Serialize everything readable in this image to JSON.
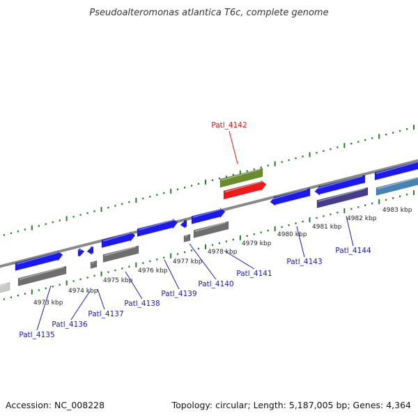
{
  "title": "Pseudoalteromonas atlantica T6c, complete genome",
  "footer": {
    "accession": "Accession: NC_008228",
    "stats": "Topology: circular; Length: 5,187,005 bp; Genes: 4,364"
  },
  "colors": {
    "forward_cds": "#1a1aee",
    "reverse_cds": "#6e6e6e",
    "reverse_cds_light": "#c8c8c8",
    "highlight_cds": "#ee1a1a",
    "rna_gene": "#6b8c2a",
    "purple_cds": "#463c8c",
    "steelblue_cds": "#4682b4",
    "backbone": "#8a8a8a",
    "ruler": "#1f7f1f",
    "label_default": "#1a1aaa",
    "label_highlight": "#dd1111"
  },
  "kbp_labels": [
    "4973 kbp",
    "4974 kbp",
    "4975 kbp",
    "4976 kbp",
    "4977 kbp",
    "4978 kbp",
    "4979 kbp",
    "4980 kbp",
    "4981 kbp",
    "4982 kbp",
    "4983 kbp"
  ],
  "gene_labels": [
    {
      "name": "Patl_4135",
      "highlight": false
    },
    {
      "name": "Patl_4136",
      "highlight": false
    },
    {
      "name": "Patl_4137",
      "highlight": false
    },
    {
      "name": "Patl_4138",
      "highlight": false
    },
    {
      "name": "Patl_4139",
      "highlight": false
    },
    {
      "name": "Patl_4140",
      "highlight": false
    },
    {
      "name": "Patl_4141",
      "highlight": false
    },
    {
      "name": "Patl_4142",
      "highlight": true
    },
    {
      "name": "Patl_4143",
      "highlight": false
    },
    {
      "name": "Patl_4144",
      "highlight": false
    }
  ]
}
